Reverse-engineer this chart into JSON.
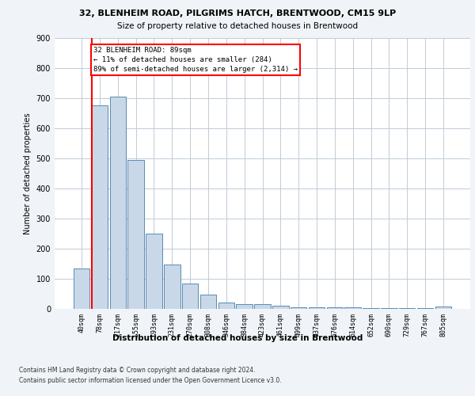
{
  "title1": "32, BLENHEIM ROAD, PILGRIMS HATCH, BRENTWOOD, CM15 9LP",
  "title2": "Size of property relative to detached houses in Brentwood",
  "xlabel": "Distribution of detached houses by size in Brentwood",
  "ylabel": "Number of detached properties",
  "categories": [
    "40sqm",
    "78sqm",
    "117sqm",
    "155sqm",
    "193sqm",
    "231sqm",
    "270sqm",
    "308sqm",
    "346sqm",
    "384sqm",
    "423sqm",
    "461sqm",
    "499sqm",
    "537sqm",
    "576sqm",
    "614sqm",
    "652sqm",
    "690sqm",
    "729sqm",
    "767sqm",
    "805sqm"
  ],
  "values": [
    133,
    675,
    705,
    493,
    250,
    148,
    85,
    48,
    20,
    15,
    17,
    10,
    5,
    5,
    5,
    5,
    3,
    3,
    3,
    3,
    8
  ],
  "bar_color": "#c8d8e8",
  "bar_edge_color": "#5a8ab0",
  "annotation_text": "32 BLENHEIM ROAD: 89sqm\n← 11% of detached houses are smaller (284)\n89% of semi-detached houses are larger (2,314) →",
  "annotation_box_color": "white",
  "annotation_box_edge_color": "red",
  "property_line_color": "red",
  "ylim": [
    0,
    900
  ],
  "yticks": [
    0,
    100,
    200,
    300,
    400,
    500,
    600,
    700,
    800,
    900
  ],
  "footer1": "Contains HM Land Registry data © Crown copyright and database right 2024.",
  "footer2": "Contains public sector information licensed under the Open Government Licence v3.0.",
  "bg_color": "#f0f4f8",
  "plot_bg_color": "white",
  "grid_color": "#c0ccd8"
}
